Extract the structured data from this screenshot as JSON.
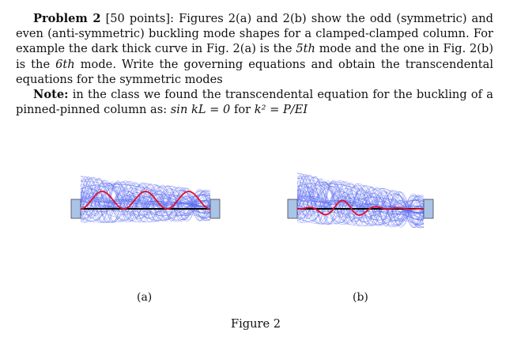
{
  "problem": {
    "heading": "Problem 2",
    "points": "[50 points]:",
    "sentence1": "Figures 2(a) and 2(b) show the odd (symmetric) and even (anti-symmetric) buckling mode shapes for a clamped-clamped column. For example the dark thick curve in Fig. 2(a) is the",
    "mode_a": "5th",
    "sentence2": "mode and the one in Fig. 2(b) is the",
    "mode_b": "6th",
    "sentence3": "mode. Write the governing equations and obtain the transcendental equations for the symmetric modes"
  },
  "note": {
    "heading": "Note:",
    "text": "in the class we found the transcendental equation for the buckling of a pinned-pinned column as:",
    "equation": "sin kL = 0",
    "for": "for",
    "relation": "k² = P/EI"
  },
  "figure": {
    "label_a": "(a)",
    "label_b": "(b)",
    "caption": "Figure 2"
  },
  "colors": {
    "mode_highlight": "#e0102a",
    "mode_family": "#5a6cf0",
    "support_fill": "#a9c4e6",
    "column": "#000000"
  }
}
